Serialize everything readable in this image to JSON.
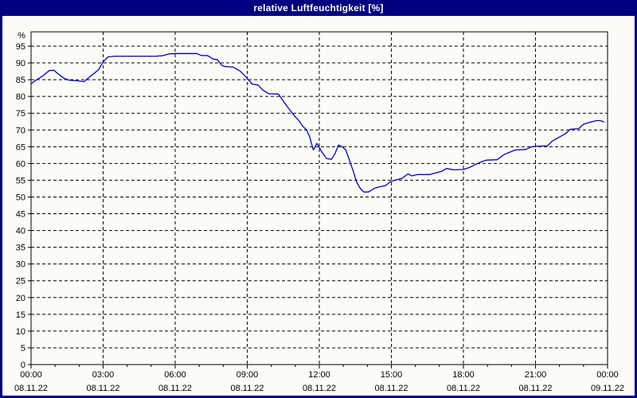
{
  "window": {
    "title": "relative Luftfeuchtigkeit [%]"
  },
  "colors": {
    "title_bar_bg": "#000080",
    "title_text": "#FFFFFF",
    "frame_border": "#000080",
    "content_bg": "#FCFDF8",
    "axis": "#000000",
    "grid": "#000000",
    "line": "#0000CD",
    "label_text": "#000000"
  },
  "chart_data": {
    "type": "line",
    "title": "relative Luftfeuchtigkeit [%]",
    "xlabel": "",
    "ylabel": "%",
    "grid": "dashed",
    "legend": "none",
    "ylim": [
      0,
      99.3
    ],
    "xlim_hours": [
      0,
      24
    ],
    "y_ticks": [
      95,
      90,
      85,
      80,
      75,
      70,
      65,
      60,
      55,
      50,
      45,
      40,
      35,
      30,
      25,
      20,
      15,
      10,
      5,
      0
    ],
    "x_ticks": [
      {
        "hours": 0,
        "time": "00:00",
        "date": "08.11.22"
      },
      {
        "hours": 3,
        "time": "03:00",
        "date": "08.11.22"
      },
      {
        "hours": 6,
        "time": "06:00",
        "date": "08.11.22"
      },
      {
        "hours": 9,
        "time": "09:00",
        "date": "08.11.22"
      },
      {
        "hours": 12,
        "time": "12:00",
        "date": "08.11.22"
      },
      {
        "hours": 15,
        "time": "15:00",
        "date": "08.11.22"
      },
      {
        "hours": 18,
        "time": "18:00",
        "date": "08.11.22"
      },
      {
        "hours": 21,
        "time": "21:00",
        "date": "08.11.22"
      },
      {
        "hours": 24,
        "time": "00:00",
        "date": "09.11.22"
      }
    ],
    "series": [
      {
        "name": "relative Luftfeuchtigkeit",
        "unit": "%",
        "points": [
          [
            0.0,
            83.8
          ],
          [
            0.2,
            84.8
          ],
          [
            0.5,
            86.2
          ],
          [
            0.75,
            87.7
          ],
          [
            0.95,
            87.8
          ],
          [
            1.15,
            86.6
          ],
          [
            1.4,
            85.3
          ],
          [
            1.6,
            84.8
          ],
          [
            1.9,
            84.7
          ],
          [
            2.2,
            84.4
          ],
          [
            2.5,
            86.2
          ],
          [
            2.8,
            87.9
          ],
          [
            3.0,
            90.3
          ],
          [
            3.2,
            91.8
          ],
          [
            3.5,
            92.0
          ],
          [
            4.0,
            92.0
          ],
          [
            4.6,
            92.0
          ],
          [
            5.2,
            92.0
          ],
          [
            5.5,
            92.2
          ],
          [
            5.75,
            92.7
          ],
          [
            6.0,
            92.8
          ],
          [
            6.5,
            92.8
          ],
          [
            6.9,
            92.8
          ],
          [
            7.1,
            92.2
          ],
          [
            7.35,
            92.2
          ],
          [
            7.5,
            91.5
          ],
          [
            7.6,
            91.1
          ],
          [
            7.75,
            91.0
          ],
          [
            7.95,
            89.2
          ],
          [
            8.1,
            88.9
          ],
          [
            8.4,
            88.8
          ],
          [
            8.7,
            87.6
          ],
          [
            8.95,
            85.8
          ],
          [
            9.2,
            83.7
          ],
          [
            9.45,
            83.4
          ],
          [
            9.65,
            81.9
          ],
          [
            9.9,
            80.8
          ],
          [
            10.3,
            80.7
          ],
          [
            10.65,
            77.1
          ],
          [
            11.0,
            73.9
          ],
          [
            11.15,
            72.8
          ],
          [
            11.3,
            71.2
          ],
          [
            11.47,
            70.0
          ],
          [
            11.6,
            68.0
          ],
          [
            11.75,
            64.0
          ],
          [
            11.9,
            66.0
          ],
          [
            12.1,
            63.5
          ],
          [
            12.3,
            61.5
          ],
          [
            12.5,
            61.2
          ],
          [
            12.65,
            62.9
          ],
          [
            12.8,
            65.5
          ],
          [
            12.95,
            65.0
          ],
          [
            13.1,
            64.0
          ],
          [
            13.3,
            60.1
          ],
          [
            13.45,
            56.9
          ],
          [
            13.55,
            54.5
          ],
          [
            13.7,
            52.6
          ],
          [
            13.85,
            51.5
          ],
          [
            14.05,
            51.5
          ],
          [
            14.3,
            52.6
          ],
          [
            14.5,
            53.0
          ],
          [
            14.75,
            53.4
          ],
          [
            14.95,
            54.5
          ],
          [
            15.1,
            54.9
          ],
          [
            15.3,
            55.3
          ],
          [
            15.45,
            55.6
          ],
          [
            15.7,
            56.9
          ],
          [
            15.85,
            56.3
          ],
          [
            16.1,
            56.7
          ],
          [
            16.6,
            56.7
          ],
          [
            17.1,
            57.7
          ],
          [
            17.3,
            58.5
          ],
          [
            17.6,
            58.1
          ],
          [
            18.0,
            58.2
          ],
          [
            18.25,
            58.8
          ],
          [
            18.5,
            59.7
          ],
          [
            18.75,
            60.5
          ],
          [
            18.95,
            61.0
          ],
          [
            19.4,
            61.1
          ],
          [
            19.7,
            62.7
          ],
          [
            20.15,
            64.0
          ],
          [
            20.6,
            64.2
          ],
          [
            20.85,
            65.0
          ],
          [
            21.2,
            65.2
          ],
          [
            21.5,
            65.3
          ],
          [
            21.7,
            66.7
          ],
          [
            22.0,
            67.9
          ],
          [
            22.25,
            68.9
          ],
          [
            22.45,
            70.2
          ],
          [
            22.8,
            70.4
          ],
          [
            23.0,
            71.7
          ],
          [
            23.3,
            72.4
          ],
          [
            23.55,
            72.8
          ],
          [
            23.7,
            72.8
          ],
          [
            23.85,
            72.4
          ]
        ]
      }
    ]
  }
}
